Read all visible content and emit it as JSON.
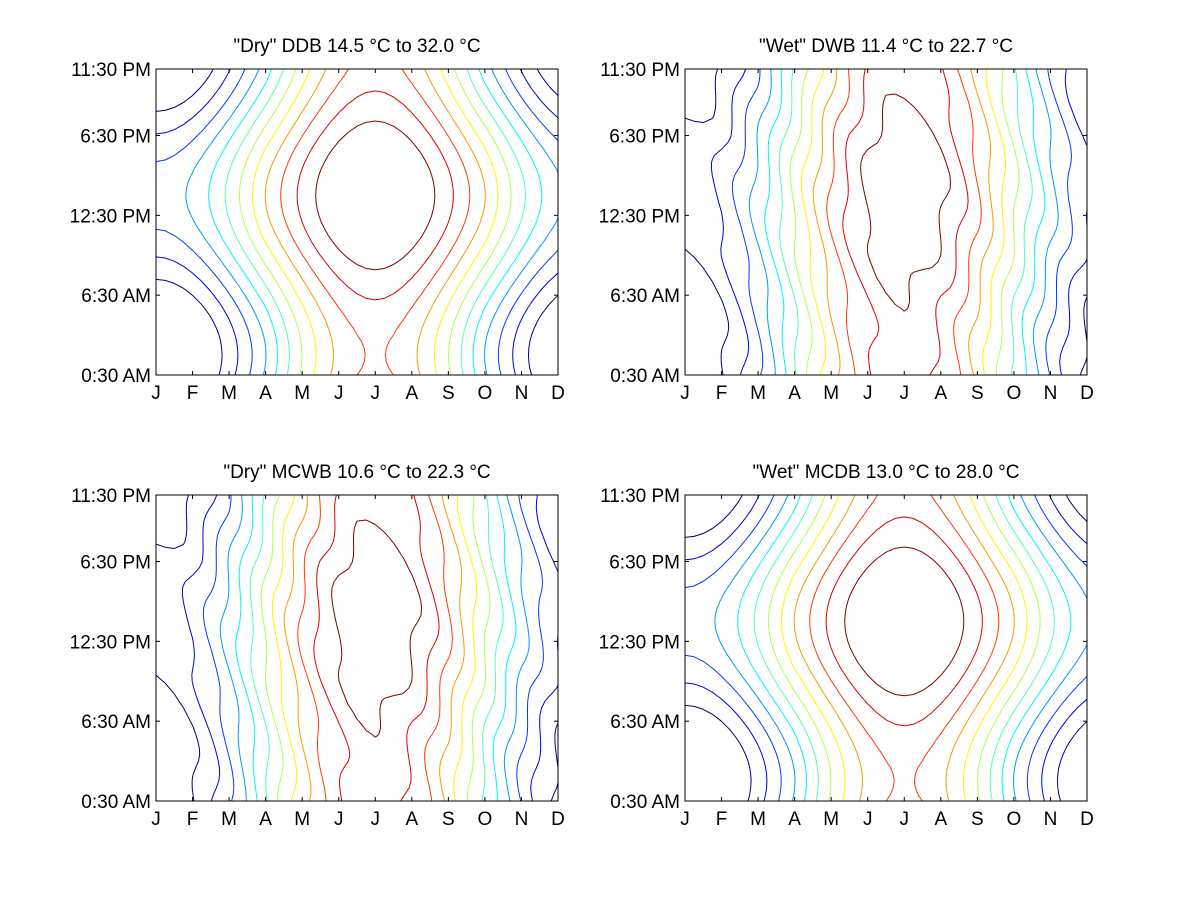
{
  "chart_data": [
    {
      "type": "contour",
      "title": "\"Dry\" DDB  14.5 °C to  32.0 °C",
      "x_tick_labels": [
        "J",
        "F",
        "M",
        "A",
        "M",
        "J",
        "J",
        "A",
        "S",
        "O",
        "N",
        "D"
      ],
      "y_tick_labels": [
        "0:30 AM",
        "6:30 AM",
        "12:30 PM",
        "6:30 PM",
        "11:30 PM"
      ],
      "xlim": [
        1,
        12
      ],
      "ylim": [
        0.5,
        23.5
      ],
      "y_ticks": [
        0.5,
        6.5,
        12.5,
        18.5,
        23.5
      ],
      "value_range": [
        14.5,
        32.0
      ],
      "pattern": "dry",
      "colormap": "jet"
    },
    {
      "type": "contour",
      "title": "\"Wet\" DWB  11.4 °C to  22.7 °C",
      "x_tick_labels": [
        "J",
        "F",
        "M",
        "A",
        "M",
        "J",
        "J",
        "A",
        "S",
        "O",
        "N",
        "D"
      ],
      "y_tick_labels": [
        "0:30 AM",
        "6:30 AM",
        "12:30 PM",
        "6:30 PM",
        "11:30 PM"
      ],
      "xlim": [
        1,
        12
      ],
      "ylim": [
        0.5,
        23.5
      ],
      "y_ticks": [
        0.5,
        6.5,
        12.5,
        18.5,
        23.5
      ],
      "value_range": [
        11.4,
        22.7
      ],
      "pattern": "wet",
      "colormap": "jet"
    },
    {
      "type": "contour",
      "title": "\"Dry\" MCWB  10.6 °C to  22.3 °C",
      "x_tick_labels": [
        "J",
        "F",
        "M",
        "A",
        "M",
        "J",
        "J",
        "A",
        "S",
        "O",
        "N",
        "D"
      ],
      "y_tick_labels": [
        "0:30 AM",
        "6:30 AM",
        "12:30 PM",
        "6:30 PM",
        "11:30 PM"
      ],
      "xlim": [
        1,
        12
      ],
      "ylim": [
        0.5,
        23.5
      ],
      "y_ticks": [
        0.5,
        6.5,
        12.5,
        18.5,
        23.5
      ],
      "value_range": [
        10.6,
        22.3
      ],
      "pattern": "wet",
      "colormap": "jet"
    },
    {
      "type": "contour",
      "title": "\"Wet\" MCDB  13.0 °C to  28.0 °C",
      "x_tick_labels": [
        "J",
        "F",
        "M",
        "A",
        "M",
        "J",
        "J",
        "A",
        "S",
        "O",
        "N",
        "D"
      ],
      "y_tick_labels": [
        "0:30 AM",
        "6:30 AM",
        "12:30 PM",
        "6:30 PM",
        "11:30 PM"
      ],
      "xlim": [
        1,
        12
      ],
      "ylim": [
        0.5,
        23.5
      ],
      "y_ticks": [
        0.5,
        6.5,
        12.5,
        18.5,
        23.5
      ],
      "value_range": [
        13.0,
        28.0
      ],
      "pattern": "dry",
      "colormap": "jet"
    }
  ]
}
